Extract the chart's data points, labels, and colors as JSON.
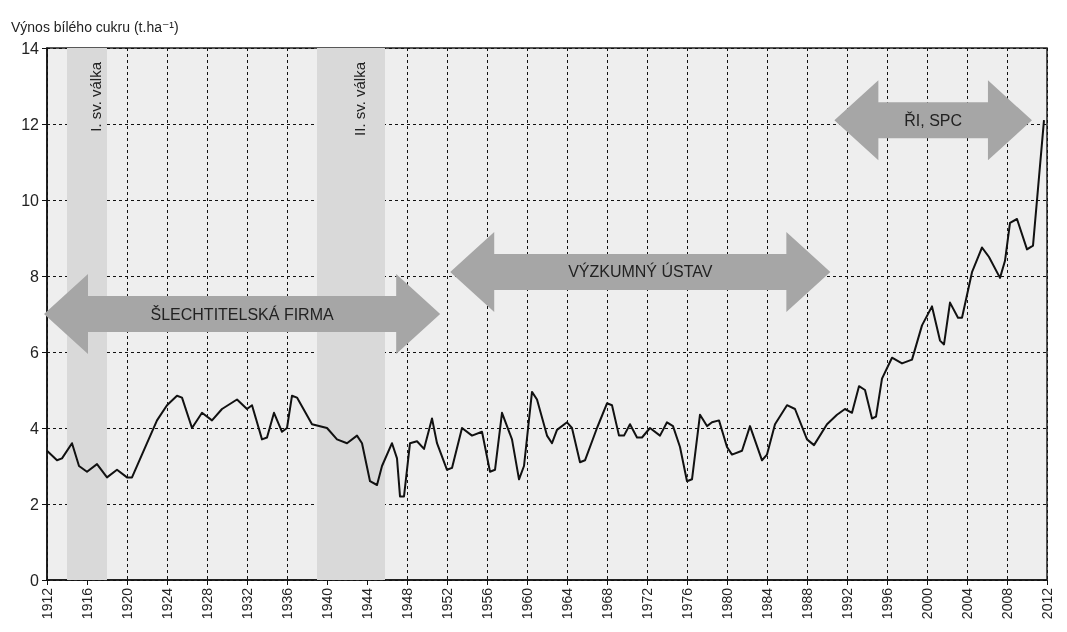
{
  "chart_data": {
    "type": "line",
    "ylabel": "Výnos bílého cukru (t.ha⁻¹)",
    "xlim": [
      1912,
      2012
    ],
    "xticks": [
      1912,
      1916,
      1920,
      1924,
      1928,
      1932,
      1936,
      1940,
      1944,
      1948,
      1952,
      1956,
      1960,
      1964,
      1968,
      1972,
      1976,
      1980,
      1984,
      1988,
      1992,
      1996,
      2000,
      2004,
      2008,
      2012
    ],
    "ylim": [
      0,
      14
    ],
    "yticks": [
      0,
      2,
      4,
      6,
      8,
      10,
      12,
      14
    ],
    "grid": true,
    "marker": "none",
    "line_style": "solid",
    "series": [
      {
        "color": "#111111",
        "x": [
          1912,
          1913,
          1913.5,
          1914.5,
          1915.2,
          1916,
          1917,
          1918,
          1919,
          1920,
          1920.5,
          1922,
          1923,
          1924,
          1925,
          1925.5,
          1926.5,
          1927.5,
          1928.5,
          1929.5,
          1931,
          1932,
          1932.5,
          1933.5,
          1934,
          1934.7,
          1935.5,
          1936,
          1936.5,
          1937,
          1938.5,
          1940,
          1941,
          1942,
          1943,
          1943.5,
          1944.3,
          1945,
          1945.5,
          1946.5,
          1947,
          1947.3,
          1947.7,
          1948.3,
          1949,
          1949.7,
          1950.5,
          1951,
          1952,
          1952.5,
          1953.5,
          1954.5,
          1955.5,
          1956.3,
          1956.8,
          1957.5,
          1958.5,
          1959.2,
          1959.7,
          1960.5,
          1961,
          1962,
          1962.5,
          1963,
          1964,
          1964.5,
          1965.3,
          1965.8,
          1967,
          1968,
          1968.5,
          1969.2,
          1969.7,
          1970.3,
          1971,
          1971.5,
          1972.3,
          1973.3,
          1974,
          1974.6,
          1975.3,
          1976,
          1976.5,
          1977.3,
          1978,
          1978.5,
          1979.2,
          1980,
          1980.5,
          1981.5,
          1982.3,
          1983.5,
          1984,
          1984.8,
          1986,
          1986.8,
          1988,
          1988.7,
          1990,
          1991,
          1991.8,
          1992.5,
          1993.2,
          1993.8,
          1994.5,
          1994.9,
          1995.5,
          1996.5,
          1997.5,
          1998.5,
          1999.5,
          2000.5,
          2001.3,
          2001.7,
          2002.3,
          2003.1,
          2003.5,
          2004.5,
          2005.5,
          2006.2,
          2007.3,
          2007.8,
          2008.3,
          2009,
          2010,
          2010.6,
          2011.7
        ],
        "values": [
          3.4,
          3.15,
          3.2,
          3.6,
          3.0,
          2.85,
          3.05,
          2.7,
          2.9,
          2.7,
          2.7,
          3.6,
          4.2,
          4.6,
          4.85,
          4.8,
          4.0,
          4.4,
          4.2,
          4.5,
          4.75,
          4.5,
          4.6,
          3.7,
          3.75,
          4.4,
          3.9,
          4.0,
          4.85,
          4.8,
          4.1,
          4.0,
          3.7,
          3.6,
          3.8,
          3.6,
          2.6,
          2.5,
          3.0,
          3.6,
          3.2,
          2.2,
          2.2,
          3.6,
          3.65,
          3.45,
          4.25,
          3.6,
          2.9,
          2.95,
          4.0,
          3.8,
          3.9,
          2.85,
          2.9,
          4.4,
          3.7,
          2.65,
          3.0,
          4.95,
          4.75,
          3.8,
          3.6,
          3.95,
          4.15,
          4.0,
          3.1,
          3.15,
          4.0,
          4.65,
          4.6,
          3.8,
          3.8,
          4.1,
          3.75,
          3.75,
          4.0,
          3.8,
          4.15,
          4.05,
          3.5,
          2.6,
          2.65,
          4.35,
          4.05,
          4.15,
          4.2,
          3.5,
          3.3,
          3.4,
          4.05,
          3.15,
          3.3,
          4.1,
          4.6,
          4.5,
          3.7,
          3.55,
          4.1,
          4.35,
          4.5,
          4.4,
          5.1,
          5.0,
          4.25,
          4.3,
          5.3,
          5.85,
          5.7,
          5.8,
          6.7,
          7.2,
          6.3,
          6.2,
          7.3,
          6.9,
          6.9,
          8.1,
          8.75,
          8.5,
          7.95,
          8.4,
          9.4,
          9.5,
          8.7,
          8.8,
          12.1
        ]
      }
    ],
    "bands": [
      {
        "axis": "x",
        "from": 1914,
        "to": 1918,
        "label": "I. sv. válka",
        "color": "#d9d9d9"
      },
      {
        "axis": "x",
        "from": 1939,
        "to": 1945.8,
        "label": "II. sv. válka",
        "color": "#d9d9d9"
      }
    ],
    "annotations": [
      "ŠLECHTITELSKÁ FIRMA",
      "VÝZKUMNÝ ÚSTAV",
      "ŘI, SPC"
    ]
  }
}
